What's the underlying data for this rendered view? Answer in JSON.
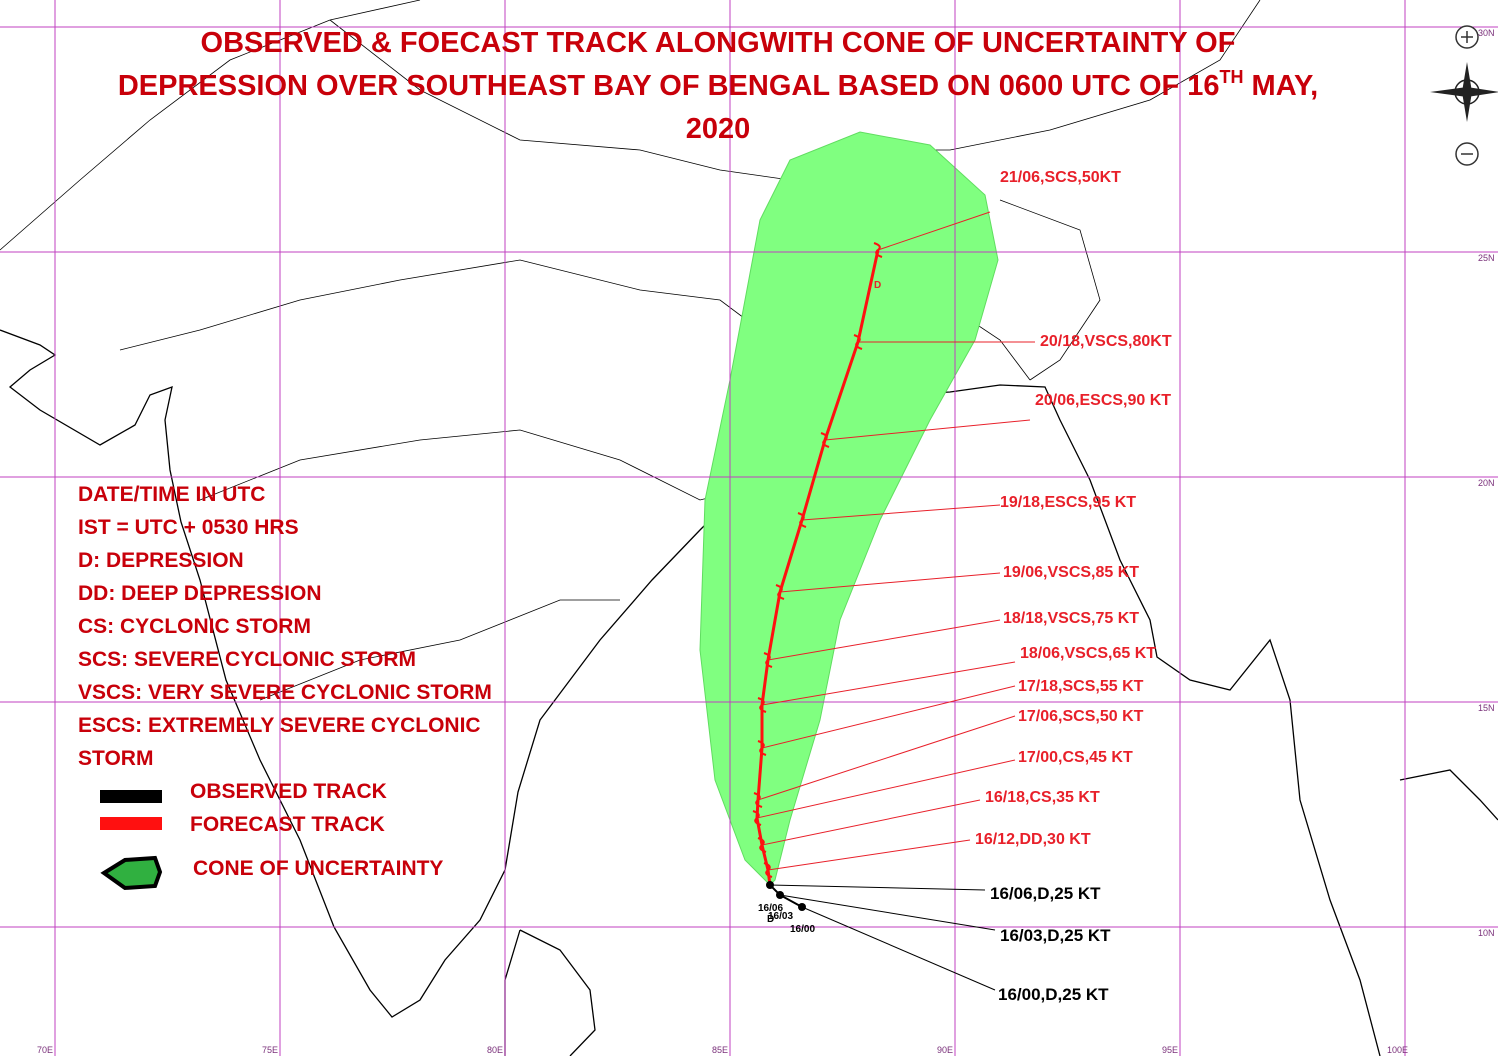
{
  "title": {
    "line1": "OBSERVED & FOECAST TRACK ALONGWITH CONE OF UNCERTAINTY OF",
    "line2": "DEPRESSION OVER SOUTHEAST BAY OF BENGAL BASED ON 0600 UTC OF 16",
    "line2_sup": "TH",
    "line2_end": "MAY,",
    "line3": "2020"
  },
  "legend": {
    "notes": [
      "DATE/TIME IN UTC",
      "IST = UTC + 0530 HRS",
      "D: DEPRESSION",
      "DD: DEEP DEPRESSION",
      "CS: CYCLONIC STORM",
      "SCS: SEVERE CYCLONIC STORM",
      "VSCS: VERY SEVERE CYCLONIC STORM",
      "ESCS: EXTREMELY SEVERE CYCLONIC",
      "STORM"
    ],
    "observed": "OBSERVED TRACK",
    "forecast": "FORECAST TRACK",
    "cone": "CONE OF UNCERTAINTY"
  },
  "forecast_labels": [
    "21/06,SCS,50KT",
    "20/18,VSCS,80KT",
    "20/06,ESCS,90 KT",
    "19/18,ESCS,95 KT",
    "19/06,VSCS,85 KT",
    "18/18,VSCS,75 KT",
    "18/06,VSCS,65 KT",
    "17/18,SCS,55 KT",
    "17/06,SCS,50 KT",
    "17/00,CS,45 KT",
    "16/18,CS,35 KT",
    "16/12,DD,30 KT"
  ],
  "observed_labels": [
    "16/06,D,25 KT",
    "16/03,D,25 KT",
    "16/00,D,25 KT"
  ],
  "point_labels": [
    "16/06",
    "16/03",
    "16/00",
    "D",
    "D"
  ],
  "grid": {
    "lat_labels": [
      "30N",
      "25N",
      "20N",
      "15N",
      "10N"
    ],
    "lon_labels": [
      "70E",
      "75E",
      "80E",
      "85E",
      "90E",
      "95E",
      "100E"
    ]
  }
}
